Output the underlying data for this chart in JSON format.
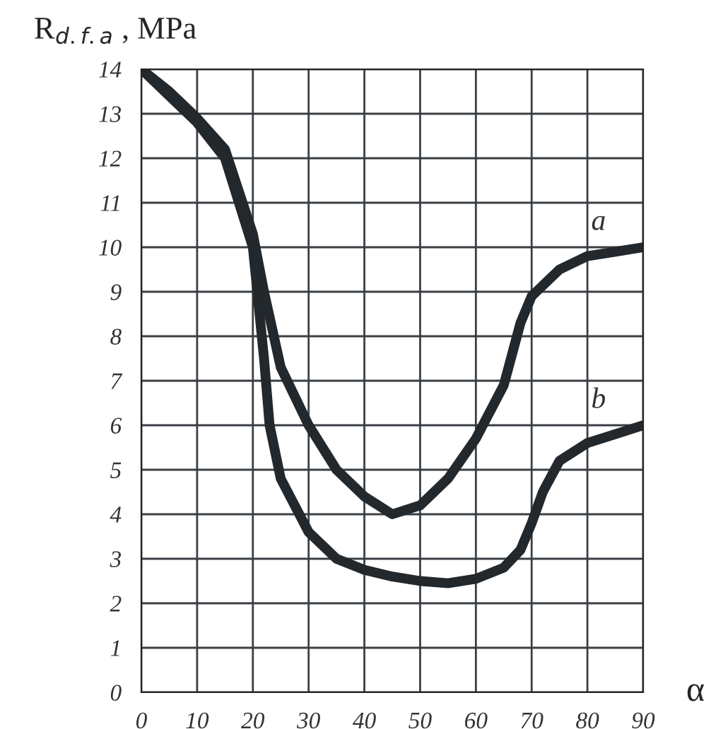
{
  "chart_data": {
    "type": "line",
    "ylabel": "R$_{d.f.a}$ , MPa",
    "xlabel": "α",
    "series": [
      {
        "name": "a",
        "color": "#23282d",
        "x": [
          0,
          5,
          10,
          15,
          20,
          22,
          25,
          30,
          35,
          40,
          45,
          50,
          55,
          60,
          65,
          68,
          70,
          75,
          80,
          85,
          90
        ],
        "values": [
          14,
          13.5,
          12.9,
          12.2,
          10.3,
          9.0,
          7.3,
          6.0,
          5.0,
          4.4,
          4.0,
          4.2,
          4.8,
          5.7,
          6.9,
          8.3,
          8.9,
          9.5,
          9.8,
          9.9,
          10.0
        ]
      },
      {
        "name": "b",
        "color": "#23282d",
        "x": [
          0,
          5,
          10,
          15,
          20,
          22,
          23,
          25,
          30,
          35,
          40,
          45,
          50,
          55,
          60,
          65,
          68,
          70,
          72,
          75,
          80,
          85,
          90
        ],
        "values": [
          14,
          13.4,
          12.8,
          12.0,
          10.0,
          7.5,
          6.0,
          4.8,
          3.6,
          3.0,
          2.75,
          2.6,
          2.5,
          2.45,
          2.55,
          2.8,
          3.2,
          3.8,
          4.5,
          5.2,
          5.6,
          5.8,
          6.0
        ]
      }
    ],
    "xlim": [
      0,
      90
    ],
    "xticks": [
      0,
      10,
      20,
      30,
      40,
      50,
      60,
      70,
      80,
      90
    ],
    "ylim": [
      0,
      14
    ],
    "yticks": [
      0,
      1,
      2,
      3,
      4,
      5,
      6,
      7,
      8,
      9,
      10,
      11,
      12,
      13,
      14
    ],
    "grid": true,
    "legend": false,
    "marker": "none",
    "line_style": "solid"
  }
}
